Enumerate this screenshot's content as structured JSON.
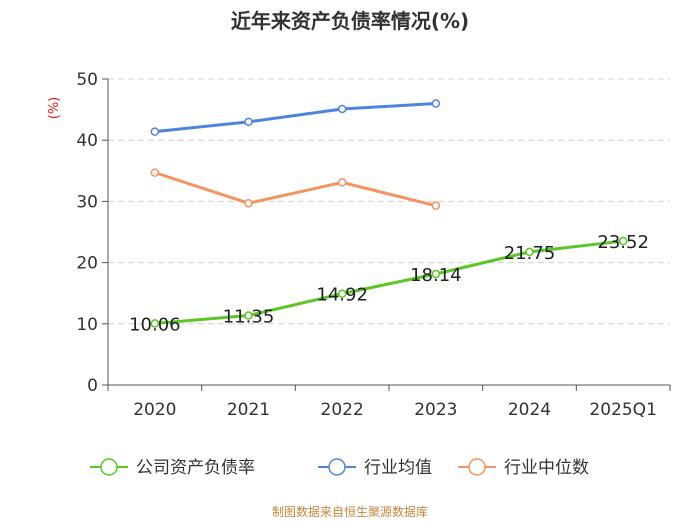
{
  "chart_data": {
    "type": "line",
    "title": "近年来资产负债率情况(%)",
    "ylabel": "(%)",
    "xlabel": "",
    "categories": [
      "2020",
      "2021",
      "2022",
      "2023",
      "2024",
      "2025Q1"
    ],
    "ylim": [
      0,
      50
    ],
    "yticks": [
      0,
      10,
      20,
      30,
      40,
      50
    ],
    "series": [
      {
        "name": "公司资产负债率",
        "color": "#5ac724",
        "values": [
          10.06,
          11.35,
          14.92,
          18.14,
          21.75,
          23.52
        ],
        "labels": [
          "10.06",
          "11.35",
          "14.92",
          "18.14",
          "21.75",
          "23.52"
        ]
      },
      {
        "name": "行业均值",
        "color": "#4f83e0",
        "values": [
          41.4,
          43.0,
          45.1,
          46.0,
          null,
          null
        ]
      },
      {
        "name": "行业中位数",
        "color": "#f5925e",
        "values": [
          34.7,
          29.7,
          33.1,
          29.3,
          null,
          null
        ]
      }
    ],
    "legend_position": "bottom"
  },
  "source": "制图数据来自恒生聚源数据库"
}
